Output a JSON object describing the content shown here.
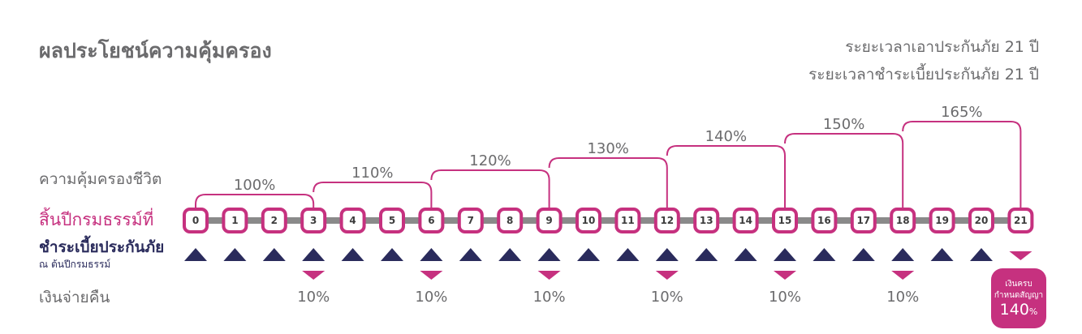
{
  "header": {
    "title": "ผลประโยชน์ความคุ้มครอง",
    "coverage_period": "ระยะเวลาเอาประกันภัย 21 ปี",
    "payment_period": "ระยะเวลาชำระเบี้ยประกันภัย 21 ปี"
  },
  "rows": {
    "life_coverage": "ความคุ้มครองชีวิต",
    "policy_year_end": "สิ้นปีกรมธรรม์ที่",
    "premium_payment": "ชำระเบี้ยประกันภัย",
    "premium_payment_note": "ณ ต้นปีกรมธรรม์",
    "cash_back": "เงินจ่ายคืน"
  },
  "years": [
    "0",
    "1",
    "2",
    "3",
    "4",
    "5",
    "6",
    "7",
    "8",
    "9",
    "10",
    "11",
    "12",
    "13",
    "14",
    "15",
    "16",
    "17",
    "18",
    "19",
    "20",
    "21"
  ],
  "coverage_steps": [
    {
      "from": 0,
      "to": 3,
      "label": "100%"
    },
    {
      "from": 3,
      "to": 6,
      "label": "110%"
    },
    {
      "from": 6,
      "to": 9,
      "label": "120%"
    },
    {
      "from": 9,
      "to": 12,
      "label": "130%"
    },
    {
      "from": 12,
      "to": 15,
      "label": "140%"
    },
    {
      "from": 15,
      "to": 18,
      "label": "150%"
    },
    {
      "from": 18,
      "to": 21,
      "label": "165%"
    }
  ],
  "premium_years": [
    0,
    1,
    2,
    3,
    4,
    5,
    6,
    7,
    8,
    9,
    10,
    11,
    12,
    13,
    14,
    15,
    16,
    17,
    18,
    19,
    20
  ],
  "cash_backs": [
    {
      "year": 3,
      "label": "10%"
    },
    {
      "year": 6,
      "label": "10%"
    },
    {
      "year": 9,
      "label": "10%"
    },
    {
      "year": 12,
      "label": "10%"
    },
    {
      "year": 15,
      "label": "10%"
    },
    {
      "year": 18,
      "label": "10%"
    }
  ],
  "maturity": {
    "year": 21,
    "line1": "เงินครบ",
    "line2": "กำหนดสัญญา",
    "value": "140",
    "unit": "%"
  },
  "colors": {
    "magenta": "#c6317f",
    "navy": "#2a2b5c",
    "bar_gray": "#8a8a8a",
    "text_gray": "#6b6b6d"
  }
}
